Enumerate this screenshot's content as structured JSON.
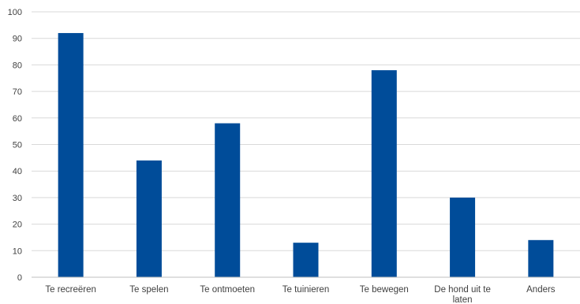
{
  "chart_data": {
    "type": "bar",
    "categories": [
      "Te recreëren",
      "Te spelen",
      "Te ontmoeten",
      "Te tuinieren",
      "Te bewegen",
      "De hond uit te laten",
      "Anders"
    ],
    "category_lines": [
      [
        "Te recreëren"
      ],
      [
        "Te spelen"
      ],
      [
        "Te ontmoeten"
      ],
      [
        "Te tuinieren"
      ],
      [
        "Te bewegen"
      ],
      [
        "De hond uit te",
        "laten"
      ],
      [
        "Anders"
      ]
    ],
    "values": [
      92,
      44,
      58,
      13,
      78,
      30,
      14
    ],
    "ylim": [
      0,
      100
    ],
    "yticks": [
      0,
      10,
      20,
      30,
      40,
      50,
      60,
      70,
      80,
      90,
      100
    ],
    "grid": true,
    "bar_color": "#004C99",
    "grid_color": "#D9D9D9",
    "title": "",
    "xlabel": "",
    "ylabel": ""
  }
}
